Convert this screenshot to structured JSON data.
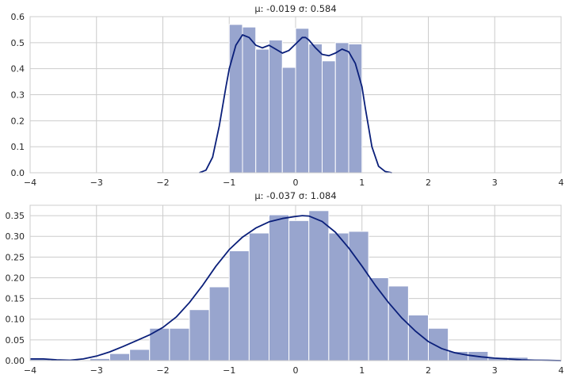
{
  "chart_data": [
    {
      "type": "bar",
      "subtype": "histogram-with-kde",
      "title": "μ: -0.019  σ: 0.584",
      "xlim": [
        -4,
        4
      ],
      "ylim": [
        0,
        0.6
      ],
      "grid": true,
      "bar_color": "#98a5ce",
      "line_color": "#0a1f7a",
      "xticks": [
        "−4",
        "−3",
        "−2",
        "−1",
        "0",
        "1",
        "2",
        "3",
        "4"
      ],
      "yticks": [
        "0.0",
        "0.1",
        "0.2",
        "0.3",
        "0.4",
        "0.5",
        "0.6"
      ],
      "ytick_values": [
        0,
        0.1,
        0.2,
        0.3,
        0.4,
        0.5,
        0.6
      ],
      "bins": {
        "edges": [
          -1.0,
          -0.8,
          -0.6,
          -0.4,
          -0.2,
          0.0,
          0.2,
          0.4,
          0.6,
          0.8,
          1.0
        ],
        "values": [
          0.57,
          0.56,
          0.475,
          0.51,
          0.405,
          0.555,
          0.495,
          0.43,
          0.5,
          0.495
        ]
      },
      "kde": {
        "x": [
          -1.45,
          -1.35,
          -1.25,
          -1.15,
          -1.05,
          -1.0,
          -0.9,
          -0.8,
          -0.7,
          -0.6,
          -0.5,
          -0.4,
          -0.3,
          -0.2,
          -0.1,
          0.0,
          0.1,
          0.15,
          0.2,
          0.3,
          0.4,
          0.5,
          0.6,
          0.7,
          0.8,
          0.9,
          1.0,
          1.05,
          1.15,
          1.25,
          1.35,
          1.45
        ],
        "y": [
          0.0,
          0.01,
          0.06,
          0.18,
          0.33,
          0.4,
          0.49,
          0.53,
          0.52,
          0.49,
          0.48,
          0.49,
          0.475,
          0.46,
          0.47,
          0.495,
          0.52,
          0.52,
          0.51,
          0.48,
          0.455,
          0.45,
          0.46,
          0.475,
          0.465,
          0.42,
          0.33,
          0.25,
          0.1,
          0.025,
          0.005,
          0.0
        ]
      }
    },
    {
      "type": "bar",
      "subtype": "histogram-with-kde",
      "title": "μ: -0.037  σ: 1.084",
      "xlim": [
        -4,
        4
      ],
      "ylim": [
        0,
        0.375
      ],
      "grid": true,
      "bar_color": "#98a5ce",
      "line_color": "#0a1f7a",
      "xticks": [
        "−4",
        "−3",
        "−2",
        "−1",
        "0",
        "1",
        "2",
        "3",
        "4"
      ],
      "yticks": [
        "0.00",
        "0.05",
        "0.10",
        "0.15",
        "0.20",
        "0.25",
        "0.30",
        "0.35"
      ],
      "ytick_values": [
        0,
        0.05,
        0.1,
        0.15,
        0.2,
        0.25,
        0.3,
        0.35
      ],
      "bins": {
        "edges": [
          -4.0,
          -3.7,
          -3.4,
          -3.1,
          -2.8,
          -2.5,
          -2.2,
          -1.9,
          -1.6,
          -1.3,
          -1.0,
          -0.7,
          -0.4,
          -0.1,
          0.2,
          0.5,
          0.8,
          1.1,
          1.4,
          1.7,
          2.0,
          2.3,
          2.6,
          2.9,
          3.2,
          3.5,
          3.8,
          4.0
        ],
        "values": [
          0.005,
          0.0,
          0.0,
          0.005,
          0.017,
          0.027,
          0.078,
          0.078,
          0.123,
          0.178,
          0.265,
          0.308,
          0.352,
          0.338,
          0.362,
          0.308,
          0.312,
          0.2,
          0.18,
          0.11,
          0.078,
          0.022,
          0.022,
          0.008,
          0.008,
          0.0,
          0.0
        ]
      },
      "kde": {
        "x": [
          -4.0,
          -3.8,
          -3.6,
          -3.4,
          -3.2,
          -3.0,
          -2.8,
          -2.6,
          -2.4,
          -2.2,
          -2.0,
          -1.8,
          -1.6,
          -1.4,
          -1.2,
          -1.0,
          -0.8,
          -0.6,
          -0.4,
          -0.2,
          0.0,
          0.1,
          0.2,
          0.4,
          0.6,
          0.8,
          1.0,
          1.2,
          1.4,
          1.6,
          1.8,
          2.0,
          2.2,
          2.4,
          2.6,
          2.8,
          3.0,
          3.2,
          3.4,
          3.6,
          3.8,
          4.0
        ],
        "y": [
          0.004,
          0.004,
          0.002,
          0.001,
          0.004,
          0.011,
          0.021,
          0.034,
          0.048,
          0.062,
          0.08,
          0.105,
          0.14,
          0.182,
          0.228,
          0.268,
          0.298,
          0.32,
          0.335,
          0.343,
          0.348,
          0.35,
          0.349,
          0.336,
          0.31,
          0.272,
          0.228,
          0.182,
          0.14,
          0.103,
          0.072,
          0.046,
          0.029,
          0.019,
          0.013,
          0.009,
          0.006,
          0.004,
          0.002,
          0.001,
          0.0005,
          0.0
        ]
      }
    }
  ]
}
